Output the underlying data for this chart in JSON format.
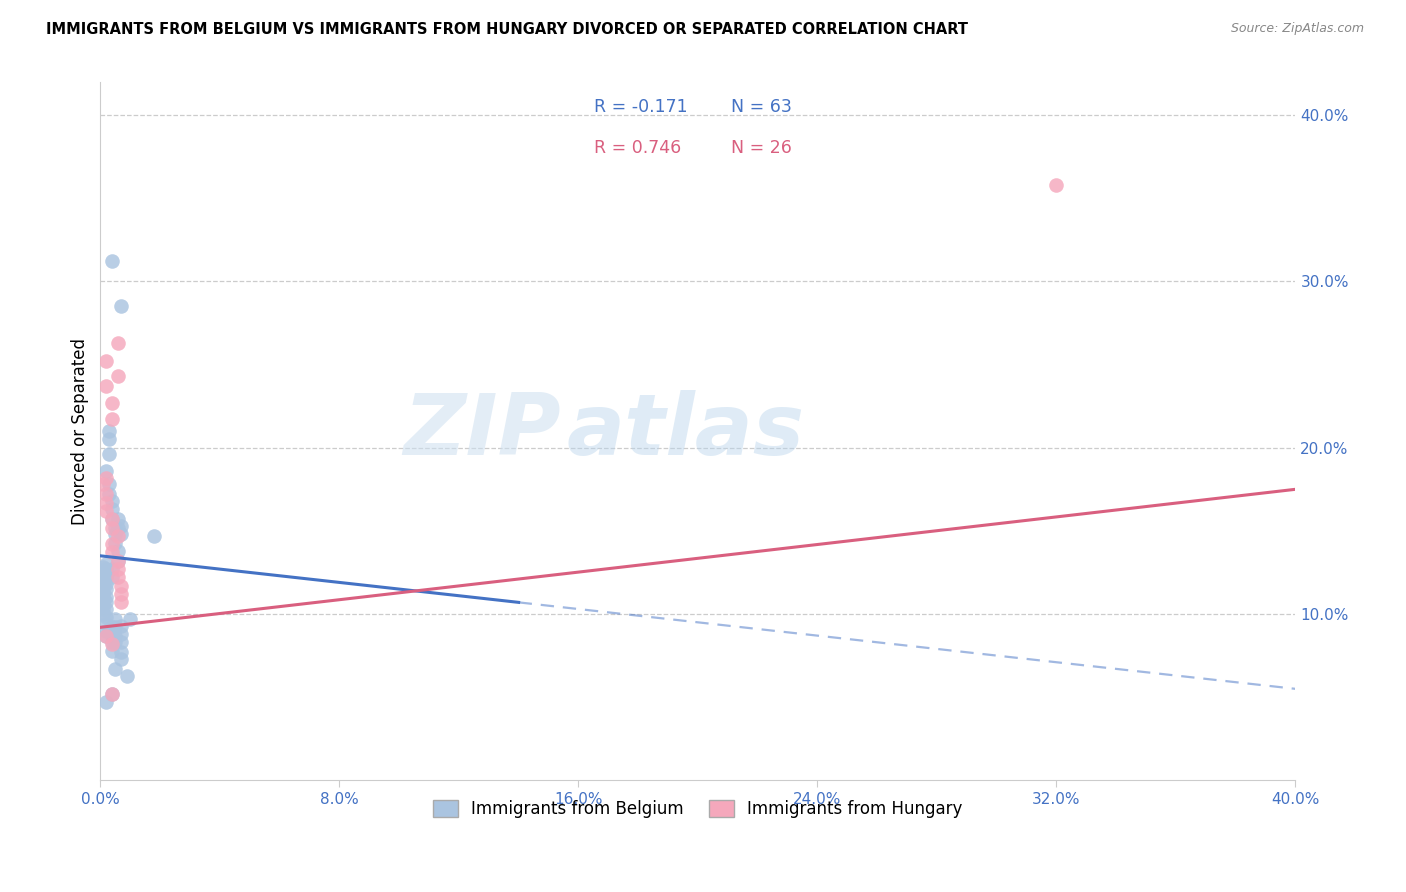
{
  "title": "IMMIGRANTS FROM BELGIUM VS IMMIGRANTS FROM HUNGARY DIVORCED OR SEPARATED CORRELATION CHART",
  "source": "Source: ZipAtlas.com",
  "ylabel": "Divorced or Separated",
  "xlim": [
    0.0,
    0.4
  ],
  "ylim": [
    0.0,
    0.42
  ],
  "blue_color": "#aac4e0",
  "pink_color": "#f5a8bc",
  "blue_line_color": "#4472C4",
  "pink_line_color": "#d95f7f",
  "legend_blue_r": "R = -0.171",
  "legend_blue_n": "N = 63",
  "legend_pink_r": "R = 0.746",
  "legend_pink_n": "N = 26",
  "watermark_zip": "ZIP",
  "watermark_atlas": "atlas",
  "blue_scatter": [
    [
      0.004,
      0.312
    ],
    [
      0.007,
      0.285
    ],
    [
      0.003,
      0.205
    ],
    [
      0.003,
      0.21
    ],
    [
      0.003,
      0.196
    ],
    [
      0.002,
      0.186
    ],
    [
      0.003,
      0.178
    ],
    [
      0.003,
      0.172
    ],
    [
      0.004,
      0.168
    ],
    [
      0.004,
      0.163
    ],
    [
      0.004,
      0.157
    ],
    [
      0.005,
      0.152
    ],
    [
      0.005,
      0.148
    ],
    [
      0.005,
      0.143
    ],
    [
      0.006,
      0.157
    ],
    [
      0.006,
      0.152
    ],
    [
      0.006,
      0.138
    ],
    [
      0.006,
      0.132
    ],
    [
      0.007,
      0.148
    ],
    [
      0.007,
      0.153
    ],
    [
      0.001,
      0.128
    ],
    [
      0.001,
      0.124
    ],
    [
      0.001,
      0.12
    ],
    [
      0.001,
      0.117
    ],
    [
      0.001,
      0.114
    ],
    [
      0.001,
      0.112
    ],
    [
      0.001,
      0.11
    ],
    [
      0.001,
      0.107
    ],
    [
      0.001,
      0.103
    ],
    [
      0.001,
      0.1
    ],
    [
      0.002,
      0.13
    ],
    [
      0.002,
      0.127
    ],
    [
      0.002,
      0.122
    ],
    [
      0.002,
      0.118
    ],
    [
      0.002,
      0.115
    ],
    [
      0.002,
      0.11
    ],
    [
      0.002,
      0.107
    ],
    [
      0.002,
      0.103
    ],
    [
      0.002,
      0.098
    ],
    [
      0.002,
      0.094
    ],
    [
      0.002,
      0.09
    ],
    [
      0.002,
      0.087
    ],
    [
      0.004,
      0.127
    ],
    [
      0.004,
      0.122
    ],
    [
      0.004,
      0.092
    ],
    [
      0.004,
      0.088
    ],
    [
      0.004,
      0.083
    ],
    [
      0.004,
      0.078
    ],
    [
      0.005,
      0.097
    ],
    [
      0.005,
      0.092
    ],
    [
      0.005,
      0.087
    ],
    [
      0.005,
      0.083
    ],
    [
      0.007,
      0.093
    ],
    [
      0.007,
      0.088
    ],
    [
      0.007,
      0.083
    ],
    [
      0.007,
      0.073
    ],
    [
      0.009,
      0.063
    ],
    [
      0.018,
      0.147
    ],
    [
      0.002,
      0.047
    ],
    [
      0.004,
      0.052
    ],
    [
      0.007,
      0.077
    ],
    [
      0.005,
      0.067
    ],
    [
      0.01,
      0.097
    ]
  ],
  "pink_scatter": [
    [
      0.002,
      0.252
    ],
    [
      0.002,
      0.237
    ],
    [
      0.004,
      0.227
    ],
    [
      0.004,
      0.217
    ],
    [
      0.006,
      0.263
    ],
    [
      0.006,
      0.243
    ],
    [
      0.001,
      0.178
    ],
    [
      0.002,
      0.182
    ],
    [
      0.002,
      0.172
    ],
    [
      0.002,
      0.167
    ],
    [
      0.002,
      0.162
    ],
    [
      0.004,
      0.157
    ],
    [
      0.004,
      0.152
    ],
    [
      0.004,
      0.142
    ],
    [
      0.004,
      0.137
    ],
    [
      0.006,
      0.147
    ],
    [
      0.006,
      0.132
    ],
    [
      0.006,
      0.127
    ],
    [
      0.006,
      0.122
    ],
    [
      0.007,
      0.117
    ],
    [
      0.007,
      0.112
    ],
    [
      0.007,
      0.107
    ],
    [
      0.002,
      0.087
    ],
    [
      0.004,
      0.082
    ],
    [
      0.004,
      0.052
    ],
    [
      0.32,
      0.358
    ]
  ],
  "blue_line": {
    "x0": 0.0,
    "x1": 0.4,
    "y0": 0.135,
    "y1": 0.055
  },
  "blue_line_solid_end": 0.14,
  "pink_line": {
    "x0": 0.0,
    "x1": 0.4,
    "y0": 0.092,
    "y1": 0.175
  }
}
